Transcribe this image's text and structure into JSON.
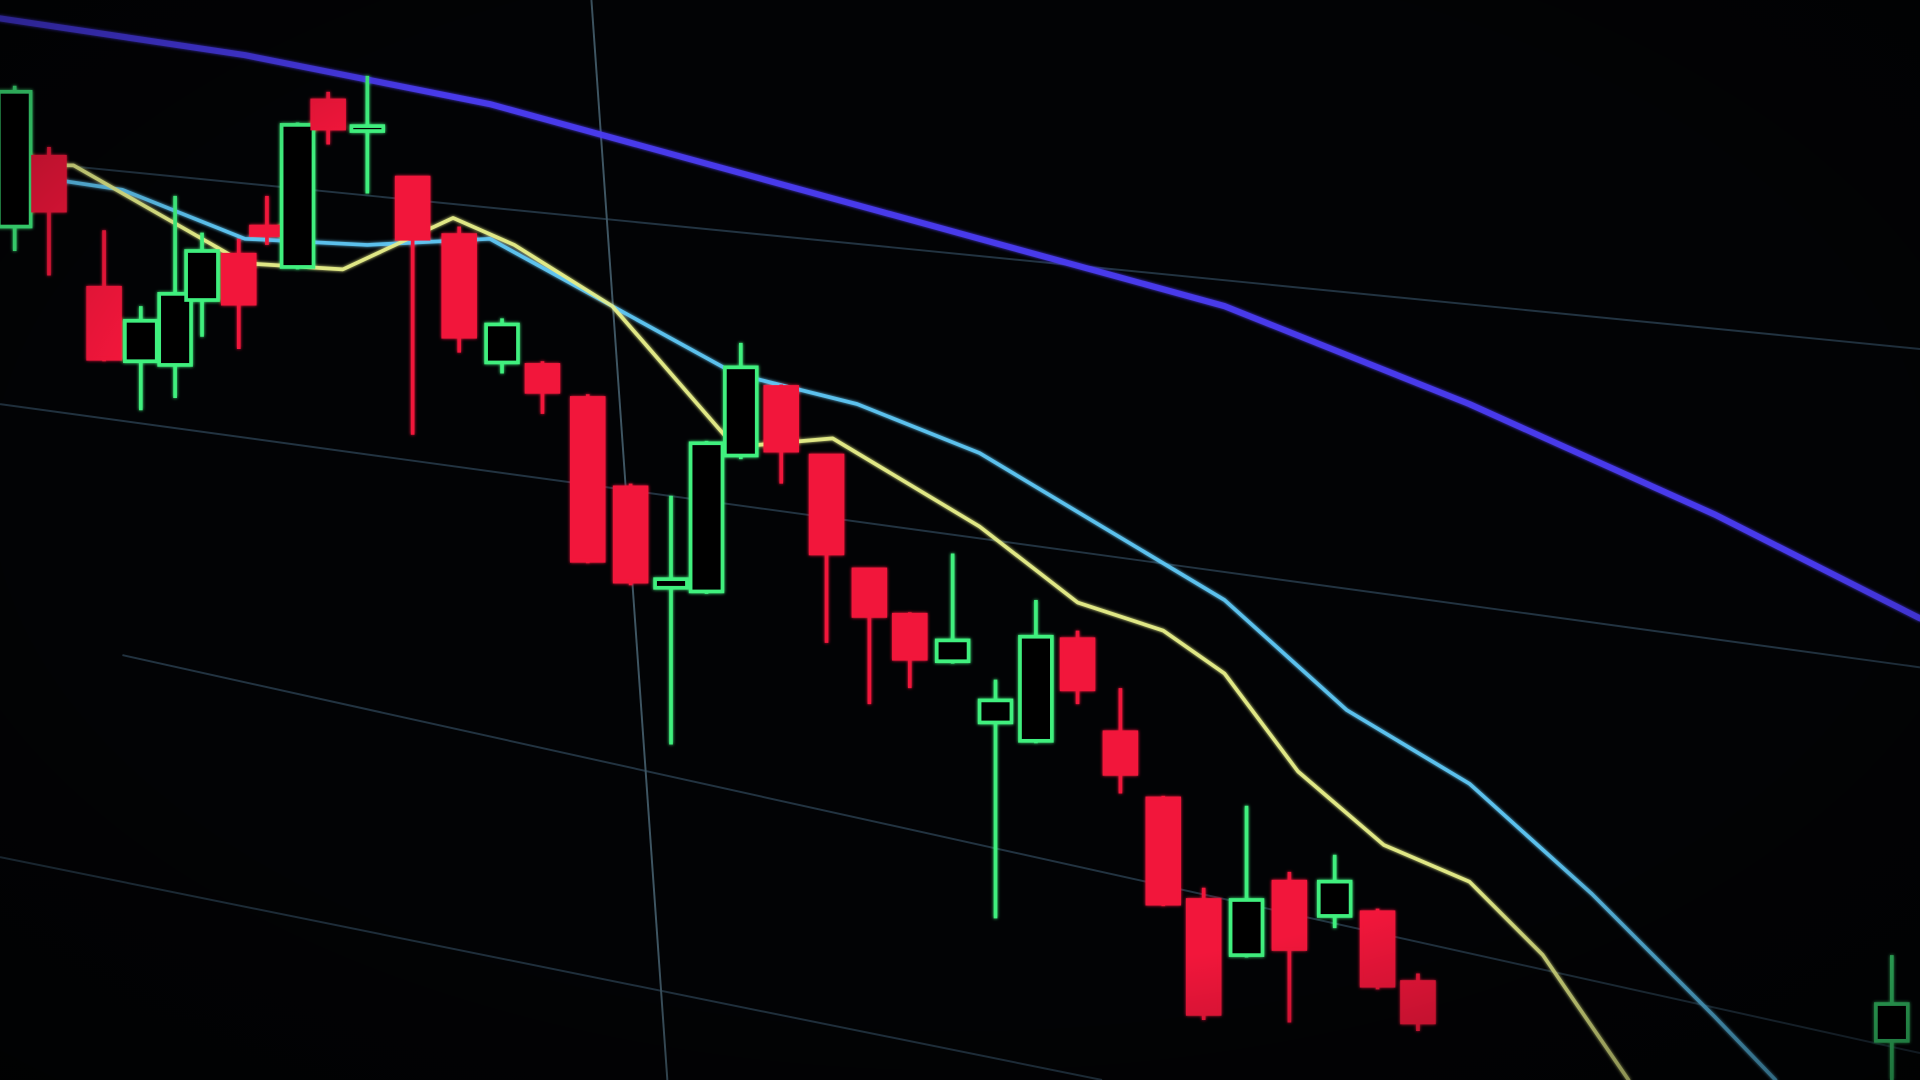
{
  "chart_data": {
    "type": "candlestick",
    "xlim": [
      0,
      1568
    ],
    "ylim": [
      0,
      882
    ],
    "up_color": "#3ff07e",
    "down_color": "#f2183a",
    "candles": [
      {
        "x": 12,
        "open": 697,
        "close": 807,
        "high": 812,
        "low": 677
      },
      {
        "x": 40,
        "open": 754,
        "close": 710,
        "high": 762,
        "low": 657
      },
      {
        "x": 85,
        "open": 647,
        "close": 589,
        "high": 694,
        "low": 587
      },
      {
        "x": 115,
        "open": 587,
        "close": 620,
        "high": 632,
        "low": 547
      },
      {
        "x": 143,
        "open": 584,
        "close": 642,
        "high": 722,
        "low": 557
      },
      {
        "x": 165,
        "open": 637,
        "close": 677,
        "high": 692,
        "low": 607
      },
      {
        "x": 195,
        "open": 674,
        "close": 634,
        "high": 687,
        "low": 597
      },
      {
        "x": 218,
        "open": 697,
        "close": 690,
        "high": 722,
        "low": 682
      },
      {
        "x": 243,
        "open": 664,
        "close": 780,
        "high": 782,
        "low": 662
      },
      {
        "x": 268,
        "open": 800,
        "close": 777,
        "high": 807,
        "low": 764
      },
      {
        "x": 300,
        "open": 775,
        "close": 779,
        "high": 820,
        "low": 724
      },
      {
        "x": 337,
        "open": 737,
        "close": 687,
        "high": 737,
        "low": 527
      },
      {
        "x": 375,
        "open": 690,
        "close": 607,
        "high": 697,
        "low": 594
      },
      {
        "x": 410,
        "open": 586,
        "close": 617,
        "high": 622,
        "low": 577
      },
      {
        "x": 443,
        "open": 584,
        "close": 562,
        "high": 587,
        "low": 544
      },
      {
        "x": 480,
        "open": 557,
        "close": 424,
        "high": 560,
        "low": 422
      },
      {
        "x": 515,
        "open": 484,
        "close": 407,
        "high": 487,
        "low": 404
      },
      {
        "x": 548,
        "open": 402,
        "close": 409,
        "high": 477,
        "low": 274
      },
      {
        "x": 577,
        "open": 399,
        "close": 520,
        "high": 522,
        "low": 397
      },
      {
        "x": 605,
        "open": 510,
        "close": 582,
        "high": 602,
        "low": 507
      },
      {
        "x": 638,
        "open": 566,
        "close": 514,
        "high": 568,
        "low": 487
      },
      {
        "x": 675,
        "open": 510,
        "close": 430,
        "high": 510,
        "low": 357
      },
      {
        "x": 710,
        "open": 417,
        "close": 379,
        "high": 417,
        "low": 307
      },
      {
        "x": 743,
        "open": 380,
        "close": 344,
        "high": 382,
        "low": 320
      },
      {
        "x": 778,
        "open": 342,
        "close": 359,
        "high": 430,
        "low": 340
      },
      {
        "x": 813,
        "open": 292,
        "close": 310,
        "high": 327,
        "low": 132
      },
      {
        "x": 846,
        "open": 277,
        "close": 362,
        "high": 392,
        "low": 275
      },
      {
        "x": 880,
        "open": 360,
        "close": 319,
        "high": 367,
        "low": 307
      },
      {
        "x": 915,
        "open": 284,
        "close": 250,
        "high": 320,
        "low": 234
      },
      {
        "x": 950,
        "open": 230,
        "close": 144,
        "high": 232,
        "low": 142
      },
      {
        "x": 983,
        "open": 147,
        "close": 54,
        "high": 157,
        "low": 49
      },
      {
        "x": 1018,
        "open": 102,
        "close": 147,
        "high": 224,
        "low": 100
      },
      {
        "x": 1053,
        "open": 162,
        "close": 107,
        "high": 170,
        "low": 47
      },
      {
        "x": 1090,
        "open": 134,
        "close": 162,
        "high": 184,
        "low": 124
      },
      {
        "x": 1125,
        "open": 137,
        "close": 77,
        "high": 140,
        "low": 74
      },
      {
        "x": 1158,
        "open": 80,
        "close": 47,
        "high": 87,
        "low": 40
      },
      {
        "x": 1545,
        "open": 32,
        "close": 62,
        "high": 102,
        "low": 0
      }
    ],
    "lines": [
      {
        "color": "#4a3cf0",
        "x": [
          0,
          200,
          400,
          600,
          800,
          1000,
          1200,
          1400,
          1568
        ],
        "values": [
          867,
          837,
          797,
          742,
          687,
          632,
          552,
          462,
          377
        ]
      },
      {
        "color": "#5fc8f5",
        "x": [
          0,
          100,
          200,
          300,
          400,
          500,
          600,
          700,
          800,
          900,
          1000,
          1100,
          1200,
          1300,
          1400,
          1450
        ],
        "values": [
          742,
          727,
          687,
          682,
          687,
          632,
          577,
          552,
          512,
          452,
          392,
          302,
          242,
          152,
          52,
          0
        ]
      },
      {
        "color": "#e8f08a",
        "x": [
          0,
          60,
          130,
          200,
          280,
          370,
          420,
          500,
          600,
          680,
          800,
          880,
          950,
          1000,
          1060,
          1130,
          1200,
          1260,
          1330
        ],
        "values": [
          747,
          747,
          707,
          667,
          662,
          704,
          682,
          632,
          517,
          524,
          452,
          390,
          367,
          332,
          252,
          192,
          162,
          102,
          0
        ]
      }
    ]
  }
}
